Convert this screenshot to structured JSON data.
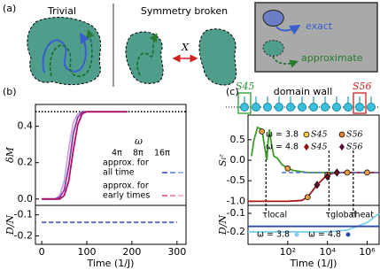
{
  "panel_a": {
    "label": "(a)",
    "trivial": "Trivial",
    "broken": "Symmetry broken",
    "forbidden": "X",
    "legend": [
      "exact",
      "approximate"
    ]
  },
  "panel_c_header": {
    "left": "S45",
    "center": "domain wall",
    "right": "S56"
  },
  "chart_data": [
    {
      "type": "line",
      "label": "(b)",
      "ylabel": "δM",
      "x": [
        0,
        30,
        40,
        50,
        60,
        70,
        80,
        90,
        100,
        120,
        150,
        190
      ],
      "xlim": [
        -14,
        320
      ],
      "ylim": [
        -0.035,
        0.52
      ],
      "yticks": [
        {
          "value": 0,
          "label": "0.0"
        },
        0.2,
        0.4
      ],
      "hline": 0.48,
      "legend_title": "ω",
      "legend_rows": [
        [
          "approx. for",
          "all time"
        ],
        [
          "approx. for",
          "early times"
        ]
      ],
      "series": [
        {
          "name": "4π",
          "color": "#c9a6dc",
          "values": [
            0,
            0,
            0.02,
            0.1,
            0.28,
            0.42,
            0.47,
            0.48,
            0.48,
            0.48,
            0.48,
            0.48
          ]
        },
        {
          "name": "8π",
          "color": "#8b3aa3",
          "values": [
            0,
            0,
            0.01,
            0.05,
            0.18,
            0.36,
            0.45,
            0.48,
            0.48,
            0.48,
            0.48,
            0.48
          ]
        },
        {
          "name": "16π",
          "color": "#b0106a",
          "values": [
            0,
            0,
            0,
            0.02,
            0.1,
            0.27,
            0.41,
            0.47,
            0.48,
            0.48,
            0.48,
            0.48
          ]
        }
      ]
    },
    {
      "type": "line",
      "ylabel": "D/N",
      "xlabel": "Time (1/J)",
      "x": [
        0,
        300
      ],
      "xlim": [
        -14,
        320
      ],
      "xticks": [
        0,
        100,
        200,
        300
      ],
      "ylim": [
        -0.24,
        -0.055
      ],
      "yticks": [
        -0.1,
        -0.2
      ],
      "series": [
        {
          "color": "#c2408a",
          "dash": true,
          "values": [
            -0.135,
            -0.135
          ]
        },
        {
          "color": "#4a6ad0",
          "dash": true,
          "values": [
            -0.136,
            -0.136
          ]
        }
      ]
    },
    {
      "type": "line",
      "label": "(c)",
      "ylabel": "Sₗᶻ",
      "xscale": "log",
      "xlim": [
        1,
        4000000
      ],
      "ylim": [
        -1.1,
        1.1
      ],
      "yticks": [
        0.5,
        {
          "value": 0,
          "label": "0.0"
        },
        -0.5,
        {
          "value": -1,
          "label": "-1.0"
        }
      ],
      "legend_rows": [
        "ω = 3.8",
        "ω = 4.8"
      ],
      "legend_columns": [
        "S45",
        "S56"
      ],
      "vlines": [
        {
          "value": 8,
          "label": "τlocal"
        },
        {
          "value": 12000,
          "label": "τglobal"
        },
        {
          "value": 200000,
          "label": "τheat"
        }
      ],
      "series": [
        {
          "color": "#3f9a2c",
          "x": [
            1.5,
            2,
            3,
            5,
            7,
            9,
            10,
            12,
            15,
            20,
            30,
            50,
            100,
            200,
            500,
            1000,
            10000,
            100000,
            1000000,
            4000000
          ],
          "values": [
            0.1,
            0.5,
            0.8,
            0.75,
            0.3,
            0,
            0.4,
            0.75,
            0.4,
            0.1,
            0.05,
            -0.1,
            -0.2,
            -0.25,
            -0.28,
            -0.3,
            -0.3,
            -0.3,
            -0.3,
            -0.3
          ]
        },
        {
          "color": "#a01818",
          "x": [
            1,
            100,
            500,
            1000,
            3000,
            10000,
            30000,
            100000,
            1000000,
            4000000
          ],
          "values": [
            -1,
            -1,
            -0.98,
            -0.9,
            -0.6,
            -0.35,
            -0.3,
            -0.3,
            -0.3,
            -0.3
          ]
        },
        {
          "color": "#5a7ad8",
          "dash": true,
          "x": [
            50,
            4000000
          ],
          "values": [
            -0.3,
            -0.3
          ]
        },
        {
          "color": "#e8a040",
          "marker": "circle",
          "x": [
            5,
            100,
            1000,
            10000,
            100000,
            1000000
          ],
          "values": [
            0.7,
            -0.2,
            -0.9,
            -0.35,
            -0.3,
            -0.3
          ]
        },
        {
          "color": "#6a0a20",
          "marker": "diamond",
          "x": [
            3000,
            10000,
            30000
          ],
          "values": [
            -0.6,
            -0.4,
            -0.3
          ]
        }
      ]
    },
    {
      "type": "line",
      "ylabel": "D/N",
      "xlabel": "Time (1/J)",
      "xscale": "log",
      "xlim": [
        1,
        4000000
      ],
      "xticks": [
        {
          "value": 100,
          "label": "10²"
        },
        {
          "value": 10000,
          "label": "10⁴"
        },
        {
          "value": 1000000,
          "label": "10⁶"
        }
      ],
      "ylim": [
        -0.267,
        -0.057
      ],
      "yticks": [
        -0.1,
        -0.2
      ],
      "series": [
        {
          "name": "ω = 3.8",
          "color": "#7fd0e8",
          "x": [
            1,
            100,
            10000,
            100000,
            1000000,
            4000000
          ],
          "values": [
            -0.2,
            -0.2,
            -0.2,
            -0.19,
            -0.15,
            -0.1
          ]
        },
        {
          "name": "ω = 4.8",
          "color": "#2a4aa0",
          "x": [
            1,
            100,
            10000,
            100000,
            1000000,
            4000000
          ],
          "values": [
            -0.17,
            -0.17,
            -0.17,
            -0.17,
            -0.17,
            -0.17
          ]
        }
      ]
    }
  ]
}
